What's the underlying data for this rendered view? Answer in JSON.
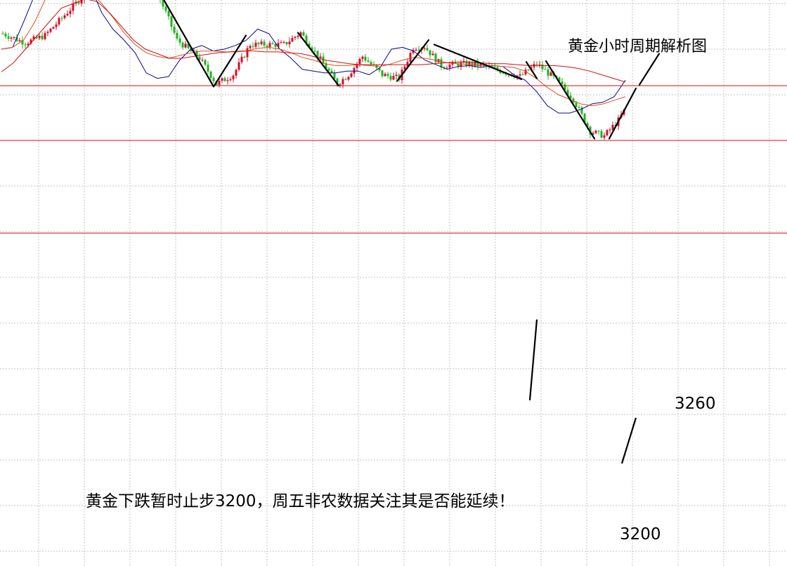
{
  "chart_data": {
    "type": "candlestick",
    "title": "黄金小时周期解析图",
    "annotation": "黄金下跌暂时止步3200，周五非农数据关注其是否能延续！",
    "levels": [
      {
        "value": 3260,
        "label": "3260",
        "color": "#d01010"
      },
      {
        "value": 3200,
        "label": "3200",
        "color": "#d01010"
      }
    ],
    "ylim": [
      3186,
      3432
    ],
    "grid": true,
    "up_color": "#d0102a",
    "down_color": "#22b022",
    "series": [
      {
        "name": "",
        "color": "#0a0a8a",
        "values": [
          3300,
          3302,
          3330,
          3360,
          3382,
          3392,
          3394,
          3394,
          3368,
          3340,
          3322,
          3310,
          3296,
          3274,
          3268,
          3270,
          3288,
          3300,
          3304,
          3298,
          3300,
          3304,
          3310,
          3322,
          3317,
          3300,
          3290,
          3278,
          3276,
          3274,
          3274,
          3276,
          3276,
          3272,
          3280,
          3300,
          3302,
          3298,
          3288,
          3283,
          3278,
          3281,
          3282,
          3280,
          3282,
          3281,
          3272,
          3266,
          3254,
          3238,
          3230,
          3230,
          3234,
          3240,
          3242,
          3248,
          3266
        ]
      },
      {
        "name": "",
        "color": "#e05020",
        "values": [
          3300,
          3302,
          3310,
          3330,
          3356,
          3366,
          3372,
          3370,
          3362,
          3350,
          3335,
          3318,
          3305,
          3296,
          3292,
          3290,
          3293,
          3296,
          3298,
          3298,
          3297,
          3297,
          3298,
          3301,
          3302,
          3300,
          3296,
          3291,
          3288,
          3284,
          3282,
          3282,
          3283,
          3282,
          3281,
          3284,
          3288,
          3291,
          3290,
          3288,
          3285,
          3284,
          3283,
          3282,
          3282,
          3281,
          3280,
          3276,
          3268,
          3258,
          3250,
          3245,
          3240,
          3238,
          3240,
          3244,
          3248
        ]
      },
      {
        "name": "",
        "color": "#d01010",
        "values": [
          3275,
          3285,
          3300,
          3315,
          3330,
          3345,
          3350,
          3355,
          3352,
          3340,
          3325,
          3310,
          3300,
          3295,
          3290,
          3290,
          3292,
          3294,
          3296,
          3297,
          3298,
          3298,
          3297,
          3297,
          3296,
          3295,
          3292,
          3288,
          3286,
          3284,
          3283,
          3283,
          3283,
          3283,
          3283,
          3283,
          3284,
          3285,
          3286,
          3286,
          3285,
          3284,
          3284,
          3283,
          3282,
          3282,
          3282,
          3281,
          3279,
          3276,
          3272,
          3268,
          3264
        ]
      }
    ],
    "trend_lines": [
      {
        "from": 3428,
        "to": 3259
      },
      {
        "from": 3259,
        "to": 3315
      },
      {
        "from": 3318,
        "to": 3260
      },
      {
        "from": 3265,
        "to": 3310
      },
      {
        "from": 3305,
        "to": 3267
      },
      {
        "from": 3286,
        "to": 3268
      },
      {
        "from": 3287,
        "to": 3202
      },
      {
        "from": 3202,
        "to": 3257
      },
      {
        "from": 3261,
        "to": 3295
      }
    ]
  }
}
